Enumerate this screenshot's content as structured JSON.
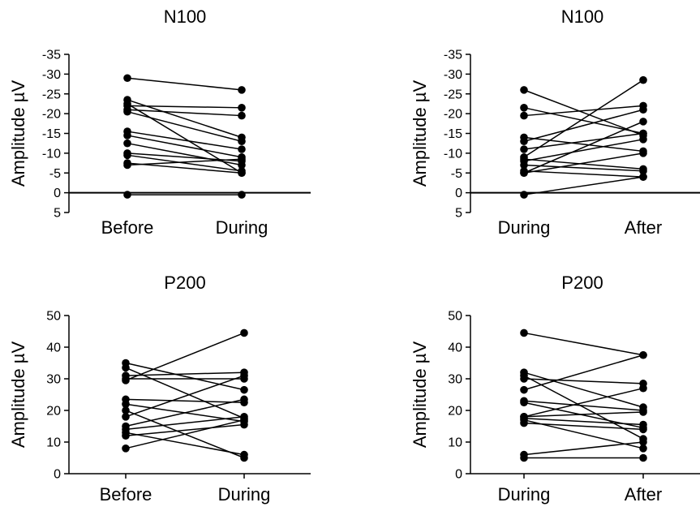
{
  "chart_data": [
    {
      "type": "line",
      "title": "N100",
      "ylabel": "Amplitude µV",
      "categories": [
        "Before",
        "During"
      ],
      "ylim": [
        5,
        -35
      ],
      "y_inverted": true,
      "yticks": [
        5,
        0,
        -5,
        -10,
        -15,
        -20,
        -25,
        -30,
        -35
      ],
      "ytick_labels": [
        "5",
        "0",
        "-5",
        "-10",
        "-15",
        "-20",
        "-25",
        "-30",
        "-35"
      ],
      "zero_line": true,
      "series": [
        {
          "values": [
            -29,
            -26
          ]
        },
        {
          "values": [
            -23.5,
            -14
          ]
        },
        {
          "values": [
            -22,
            -21.5
          ]
        },
        {
          "values": [
            -21,
            -19.5
          ]
        },
        {
          "values": [
            -20.5,
            -13
          ]
        },
        {
          "values": [
            -15.5,
            -11
          ]
        },
        {
          "values": [
            -14.5,
            -9
          ]
        },
        {
          "values": [
            -12.5,
            -7
          ]
        },
        {
          "values": [
            -10,
            -8
          ]
        },
        {
          "values": [
            -9.5,
            -5.5
          ]
        },
        {
          "values": [
            -7.5,
            -5
          ]
        },
        {
          "values": [
            -7,
            -8.5
          ]
        },
        {
          "values": [
            -22.5,
            -5
          ]
        },
        {
          "values": [
            0.5,
            0.5
          ]
        }
      ]
    },
    {
      "type": "line",
      "title": "N100",
      "ylabel": "Amplitude µV",
      "categories": [
        "During",
        "After"
      ],
      "ylim": [
        5,
        -35
      ],
      "y_inverted": true,
      "yticks": [
        5,
        0,
        -5,
        -10,
        -15,
        -20,
        -25,
        -30,
        -35
      ],
      "ytick_labels": [
        "5",
        "0",
        "-5",
        "-10",
        "-15",
        "-20",
        "-25",
        "-30",
        "-35"
      ],
      "zero_line": true,
      "series": [
        {
          "values": [
            -26,
            -14.5
          ]
        },
        {
          "values": [
            -21.5,
            -15
          ]
        },
        {
          "values": [
            -19.5,
            -22
          ]
        },
        {
          "values": [
            -14,
            -10.5
          ]
        },
        {
          "values": [
            -13,
            -21
          ]
        },
        {
          "values": [
            -11,
            -15
          ]
        },
        {
          "values": [
            -9,
            -28.5
          ]
        },
        {
          "values": [
            -8,
            -13.5
          ]
        },
        {
          "values": [
            -7,
            -5.5
          ]
        },
        {
          "values": [
            -5.5,
            -4
          ]
        },
        {
          "values": [
            -5,
            -10
          ]
        },
        {
          "values": [
            -8.5,
            -6
          ]
        },
        {
          "values": [
            -5,
            -18
          ]
        },
        {
          "values": [
            0.5,
            -4
          ]
        }
      ]
    },
    {
      "type": "line",
      "title": "P200",
      "ylabel": "Amplitude µV",
      "categories": [
        "Before",
        "During"
      ],
      "ylim": [
        0,
        50
      ],
      "y_inverted": false,
      "yticks": [
        0,
        10,
        20,
        30,
        40,
        50
      ],
      "ytick_labels": [
        "0",
        "10",
        "20",
        "30",
        "40",
        "50"
      ],
      "zero_line": false,
      "series": [
        {
          "values": [
            35,
            26.5
          ]
        },
        {
          "values": [
            33.5,
            17.5
          ]
        },
        {
          "values": [
            31,
            32
          ]
        },
        {
          "values": [
            30,
            30
          ]
        },
        {
          "values": [
            29.5,
            44.5
          ]
        },
        {
          "values": [
            23.5,
            22.5
          ]
        },
        {
          "values": [
            22,
            16.5
          ]
        },
        {
          "values": [
            20,
            5
          ]
        },
        {
          "values": [
            18,
            31
          ]
        },
        {
          "values": [
            15,
            23.5
          ]
        },
        {
          "values": [
            14,
            18
          ]
        },
        {
          "values": [
            13,
            6
          ]
        },
        {
          "values": [
            12,
            15.5
          ]
        },
        {
          "values": [
            8,
            17
          ]
        }
      ]
    },
    {
      "type": "line",
      "title": "P200",
      "ylabel": "Amplitude µV",
      "categories": [
        "During",
        "After"
      ],
      "ylim": [
        0,
        50
      ],
      "y_inverted": false,
      "yticks": [
        0,
        10,
        20,
        30,
        40,
        50
      ],
      "ytick_labels": [
        "0",
        "10",
        "20",
        "30",
        "40",
        "50"
      ],
      "zero_line": false,
      "series": [
        {
          "values": [
            44.5,
            37.5
          ]
        },
        {
          "values": [
            32,
            21
          ]
        },
        {
          "values": [
            31,
            11
          ]
        },
        {
          "values": [
            30,
            28.5
          ]
        },
        {
          "values": [
            26.5,
            37.5
          ]
        },
        {
          "values": [
            23,
            20
          ]
        },
        {
          "values": [
            18,
            27
          ]
        },
        {
          "values": [
            17.5,
            15.5
          ]
        },
        {
          "values": [
            17,
            8
          ]
        },
        {
          "values": [
            16,
            14
          ]
        },
        {
          "values": [
            6,
            10
          ]
        },
        {
          "values": [
            5,
            5
          ]
        },
        {
          "values": [
            18,
            19.5
          ]
        },
        {
          "values": [
            22.5,
            14.5
          ]
        }
      ]
    }
  ]
}
